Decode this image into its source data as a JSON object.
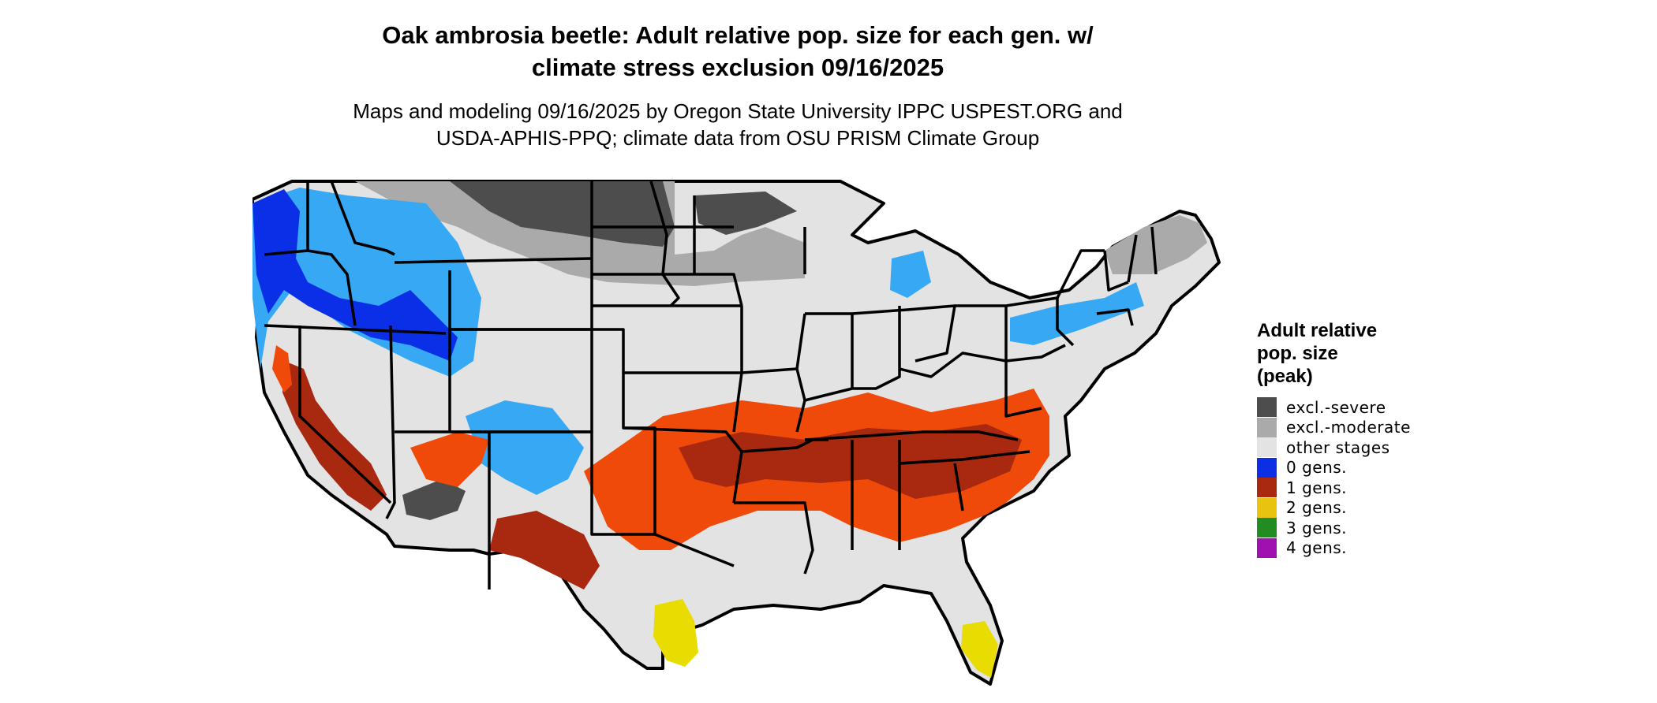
{
  "title_line1": "Oak ambrosia beetle: Adult relative pop. size for each gen. w/",
  "title_line2": "climate stress exclusion 09/16/2025",
  "subtitle_line1": "Maps and modeling 09/16/2025 by Oregon State University IPPC USPEST.ORG and",
  "subtitle_line2": "USDA-APHIS-PPQ; climate data from OSU PRISM Climate Group",
  "legend": {
    "title_line1": "Adult relative",
    "title_line2": "pop. size",
    "title_line3": "(peak)",
    "items": [
      {
        "label": "excl.-severe",
        "color": "#4d4d4d"
      },
      {
        "label": "excl.-moderate",
        "color": "#aaaaaa"
      },
      {
        "label": "other stages",
        "color": "#e3e3e3"
      },
      {
        "label": "0 gens.",
        "color": "#0a2fe6"
      },
      {
        "label": "1 gens.",
        "color": "#a82810"
      },
      {
        "label": "2 gens.",
        "color": "#e8c410"
      },
      {
        "label": "3 gens.",
        "color": "#228b22"
      },
      {
        "label": "4 gens.",
        "color": "#a010b0"
      }
    ]
  },
  "map_colors": {
    "severe": "#4d4d4d",
    "moderate": "#aaaaaa",
    "other": "#e3e3e3",
    "gen0_dark": "#0a2fe6",
    "gen0_light": "#36a8f4",
    "gen1_dark": "#a82810",
    "gen1_orange": "#f04a0a",
    "gen2": "#e8dc00",
    "border": "#000000"
  }
}
